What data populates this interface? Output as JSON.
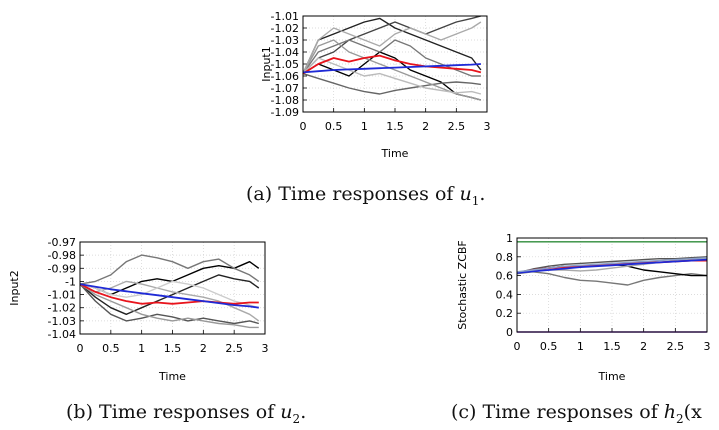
{
  "captions": {
    "a_prefix": "(a) Time responses of ",
    "a_math": "u",
    "a_sub": "1",
    "a_suffix": ".",
    "b_prefix": "(b) Time responses of ",
    "b_math": "u",
    "b_sub": "2",
    "b_suffix": ".",
    "c_prefix": "(c) Time responses of ",
    "c_math": "h",
    "c_sub": "2",
    "c_suffix": "(x"
  },
  "chart_data": [
    {
      "id": "a",
      "type": "line",
      "xlabel": "Time",
      "ylabel": "Input1",
      "xlim": [
        0,
        3
      ],
      "ylim": [
        -1.09,
        -1.01
      ],
      "xticks": [
        "0",
        "0.5",
        "1",
        "1.5",
        "2",
        "2.5",
        "3"
      ],
      "yticks": [
        "-1.01",
        "-1.02",
        "-1.03",
        "-1.04",
        "-1.05",
        "-1.06",
        "-1.07",
        "-1.08",
        "-1.09"
      ],
      "grid": true,
      "x": [
        0,
        0.25,
        0.5,
        0.75,
        1,
        1.25,
        1.5,
        1.75,
        2,
        2.25,
        2.5,
        2.75,
        2.9
      ],
      "series": [
        {
          "color": "#222222",
          "values": [
            -1.058,
            -1.03,
            -1.025,
            -1.02,
            -1.015,
            -1.012,
            -1.02,
            -1.025,
            -1.03,
            -1.035,
            -1.04,
            -1.045,
            -1.055
          ]
        },
        {
          "color": "#000000",
          "values": [
            -1.058,
            -1.05,
            -1.055,
            -1.06,
            -1.05,
            -1.04,
            -1.045,
            -1.055,
            -1.06,
            -1.065,
            -1.075,
            -1.078,
            -1.08
          ]
        },
        {
          "color": "#444444",
          "values": [
            -1.058,
            -1.045,
            -1.04,
            -1.03,
            -1.025,
            -1.02,
            -1.015,
            -1.02,
            -1.025,
            -1.02,
            -1.015,
            -1.012,
            -1.01
          ]
        },
        {
          "color": "#666666",
          "values": [
            -1.058,
            -1.062,
            -1.066,
            -1.07,
            -1.073,
            -1.075,
            -1.072,
            -1.07,
            -1.068,
            -1.066,
            -1.065,
            -1.066,
            -1.067
          ]
        },
        {
          "color": "#777777",
          "values": [
            -1.058,
            -1.04,
            -1.035,
            -1.03,
            -1.035,
            -1.04,
            -1.03,
            -1.035,
            -1.045,
            -1.05,
            -1.055,
            -1.06,
            -1.06
          ]
        },
        {
          "color": "#999999",
          "values": [
            -1.058,
            -1.035,
            -1.03,
            -1.04,
            -1.045,
            -1.05,
            -1.055,
            -1.06,
            -1.065,
            -1.07,
            -1.075,
            -1.078,
            -1.08
          ]
        },
        {
          "color": "#aaaaaa",
          "values": [
            -1.058,
            -1.03,
            -1.02,
            -1.025,
            -1.03,
            -1.035,
            -1.025,
            -1.02,
            -1.025,
            -1.03,
            -1.025,
            -1.02,
            -1.015
          ]
        },
        {
          "color": "#bbbbbb",
          "values": [
            -1.058,
            -1.045,
            -1.05,
            -1.055,
            -1.06,
            -1.058,
            -1.062,
            -1.066,
            -1.07,
            -1.072,
            -1.074,
            -1.073,
            -1.075
          ]
        },
        {
          "color": "#e8141c",
          "values": [
            -1.058,
            -1.05,
            -1.045,
            -1.048,
            -1.045,
            -1.043,
            -1.047,
            -1.05,
            -1.052,
            -1.053,
            -1.054,
            -1.055,
            -1.057
          ]
        },
        {
          "color": "#1f2ad6",
          "values": [
            -1.057,
            -1.056,
            -1.055,
            -1.0545,
            -1.054,
            -1.0535,
            -1.053,
            -1.0525,
            -1.052,
            -1.0515,
            -1.051,
            -1.0505,
            -1.05
          ]
        }
      ]
    },
    {
      "id": "b",
      "type": "line",
      "xlabel": "Time",
      "ylabel": "Input2",
      "xlim": [
        0,
        3
      ],
      "ylim": [
        -1.04,
        -0.97
      ],
      "xticks": [
        "0",
        "0.5",
        "1",
        "1.5",
        "2",
        "2.5",
        "3"
      ],
      "yticks": [
        "-0.97",
        "-0.98",
        "-0.99",
        "-1",
        "-1.01",
        "-1.02",
        "-1.03",
        "-1.04"
      ],
      "grid": true,
      "x": [
        0,
        0.25,
        0.5,
        0.75,
        1,
        1.25,
        1.5,
        1.75,
        2,
        2.25,
        2.5,
        2.75,
        2.9
      ],
      "series": [
        {
          "color": "#000000",
          "values": [
            -1.002,
            -1.005,
            -1.01,
            -1.005,
            -1.0,
            -0.998,
            -1.0,
            -0.995,
            -0.99,
            -0.988,
            -0.99,
            -0.985,
            -0.99
          ]
        },
        {
          "color": "#222222",
          "values": [
            -1.002,
            -1.012,
            -1.02,
            -1.025,
            -1.02,
            -1.015,
            -1.01,
            -1.005,
            -1.0,
            -0.995,
            -0.998,
            -1.0,
            -1.005
          ]
        },
        {
          "color": "#555555",
          "values": [
            -1.002,
            -1.015,
            -1.025,
            -1.03,
            -1.028,
            -1.025,
            -1.027,
            -1.03,
            -1.028,
            -1.03,
            -1.032,
            -1.03,
            -1.032
          ]
        },
        {
          "color": "#777777",
          "values": [
            -1.002,
            -1.0,
            -0.995,
            -0.985,
            -0.98,
            -0.982,
            -0.985,
            -0.99,
            -0.985,
            -0.983,
            -0.99,
            -0.995,
            -1.0
          ]
        },
        {
          "color": "#999999",
          "values": [
            -1.002,
            -1.01,
            -1.015,
            -1.02,
            -1.025,
            -1.028,
            -1.03,
            -1.028,
            -1.03,
            -1.032,
            -1.033,
            -1.035,
            -1.035
          ]
        },
        {
          "color": "#aaaaaa",
          "values": [
            -1.002,
            -1.008,
            -1.005,
            -1.0,
            -1.002,
            -1.005,
            -1.008,
            -1.01,
            -1.012,
            -1.015,
            -1.02,
            -1.025,
            -1.03
          ]
        },
        {
          "color": "#cccccc",
          "values": [
            -1.002,
            -1.005,
            -1.01,
            -1.012,
            -1.01,
            -1.005,
            -1.0,
            -1.002,
            -1.005,
            -1.01,
            -1.015,
            -1.018,
            -1.02
          ]
        },
        {
          "color": "#e8141c",
          "values": [
            -1.002,
            -1.008,
            -1.012,
            -1.015,
            -1.017,
            -1.016,
            -1.017,
            -1.016,
            -1.015,
            -1.016,
            -1.017,
            -1.016,
            -1.016
          ]
        },
        {
          "color": "#1f2ad6",
          "values": [
            -1.002,
            -1.004,
            -1.006,
            -1.0075,
            -1.009,
            -1.0105,
            -1.012,
            -1.0135,
            -1.015,
            -1.0165,
            -1.018,
            -1.019,
            -1.02
          ]
        }
      ]
    },
    {
      "id": "c",
      "type": "line",
      "xlabel": "Time",
      "ylabel": "Stochastic ZCBF",
      "xlim": [
        0,
        3
      ],
      "ylim": [
        0,
        1
      ],
      "xticks": [
        "0",
        "0.5",
        "1",
        "1.5",
        "2",
        "2.5",
        "3"
      ],
      "yticks": [
        "1",
        "0.8",
        "0.6",
        "0.4",
        "0.2",
        "0"
      ],
      "grid": true,
      "x": [
        0,
        0.25,
        0.5,
        0.75,
        1,
        1.25,
        1.5,
        1.75,
        2,
        2.25,
        2.5,
        2.75,
        3
      ],
      "series": [
        {
          "color": "#2e8b3a",
          "values": [
            0.96,
            0.96,
            0.96,
            0.96,
            0.96,
            0.96,
            0.96,
            0.96,
            0.96,
            0.96,
            0.96,
            0.96,
            0.96
          ]
        },
        {
          "color": "#7b2fbf",
          "values": [
            0.0,
            0.0,
            0.0,
            0.0,
            0.0,
            0.0,
            0.0,
            0.0,
            0.0,
            0.0,
            0.0,
            0.0,
            0.0
          ]
        },
        {
          "color": "#777777",
          "values": [
            0.62,
            0.64,
            0.62,
            0.58,
            0.55,
            0.54,
            0.52,
            0.5,
            0.55,
            0.58,
            0.6,
            0.62,
            0.6
          ]
        },
        {
          "color": "#000000",
          "values": [
            0.63,
            0.66,
            0.68,
            0.7,
            0.69,
            0.71,
            0.72,
            0.7,
            0.66,
            0.64,
            0.62,
            0.6,
            0.6
          ]
        },
        {
          "color": "#555555",
          "values": [
            0.63,
            0.67,
            0.7,
            0.72,
            0.73,
            0.74,
            0.75,
            0.76,
            0.77,
            0.78,
            0.78,
            0.79,
            0.8
          ]
        },
        {
          "color": "#aaaaaa",
          "values": [
            0.63,
            0.65,
            0.66,
            0.66,
            0.65,
            0.66,
            0.68,
            0.7,
            0.72,
            0.74,
            0.76,
            0.77,
            0.78
          ]
        },
        {
          "color": "#e8141c",
          "values": [
            0.63,
            0.66,
            0.68,
            0.69,
            0.7,
            0.71,
            0.72,
            0.73,
            0.74,
            0.74,
            0.75,
            0.76,
            0.76
          ]
        },
        {
          "color": "#1f2ad6",
          "values": [
            0.63,
            0.645,
            0.66,
            0.675,
            0.69,
            0.7,
            0.71,
            0.72,
            0.73,
            0.74,
            0.75,
            0.76,
            0.77
          ]
        },
        {
          "color": "#8aa0c8",
          "values": [
            0.64,
            0.66,
            0.68,
            0.7,
            0.71,
            0.72,
            0.73,
            0.74,
            0.75,
            0.76,
            0.77,
            0.78,
            0.79
          ]
        }
      ]
    }
  ]
}
